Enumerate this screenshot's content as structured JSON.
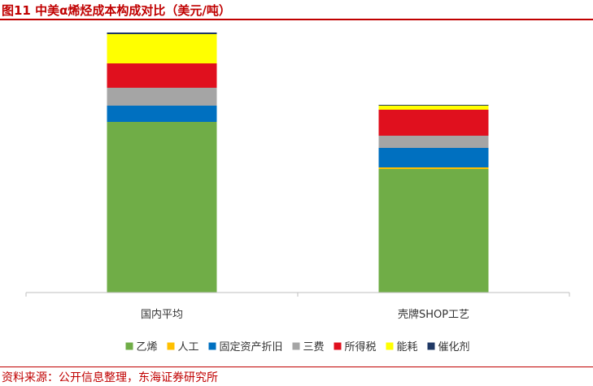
{
  "header": {
    "title": "图11 中美α烯烃成本构成对比（美元/吨）"
  },
  "footer": {
    "source": "资料来源：公开信息整理，东海证券研究所"
  },
  "chart_data": {
    "type": "bar",
    "stacked": true,
    "categories": [
      "国内平均",
      "壳牌SHOP工艺"
    ],
    "series": [
      {
        "name": "乙烯",
        "color": "#70ad47",
        "values": [
          1050,
          760
        ]
      },
      {
        "name": "人工",
        "color": "#ffc000",
        "values": [
          0,
          10
        ]
      },
      {
        "name": "固定资产折旧",
        "color": "#0070c0",
        "values": [
          100,
          120
        ]
      },
      {
        "name": "三费",
        "color": "#a5a5a5",
        "values": [
          110,
          75
        ]
      },
      {
        "name": "所得税",
        "color": "#e0101e",
        "values": [
          150,
          160
        ]
      },
      {
        "name": "能耗",
        "color": "#ffff00",
        "values": [
          180,
          25
        ]
      },
      {
        "name": "催化剂",
        "color": "#1f3864",
        "values": [
          10,
          5
        ]
      }
    ],
    "ylim": [
      0,
      1600
    ],
    "grid": false,
    "legend_position": "bottom"
  }
}
